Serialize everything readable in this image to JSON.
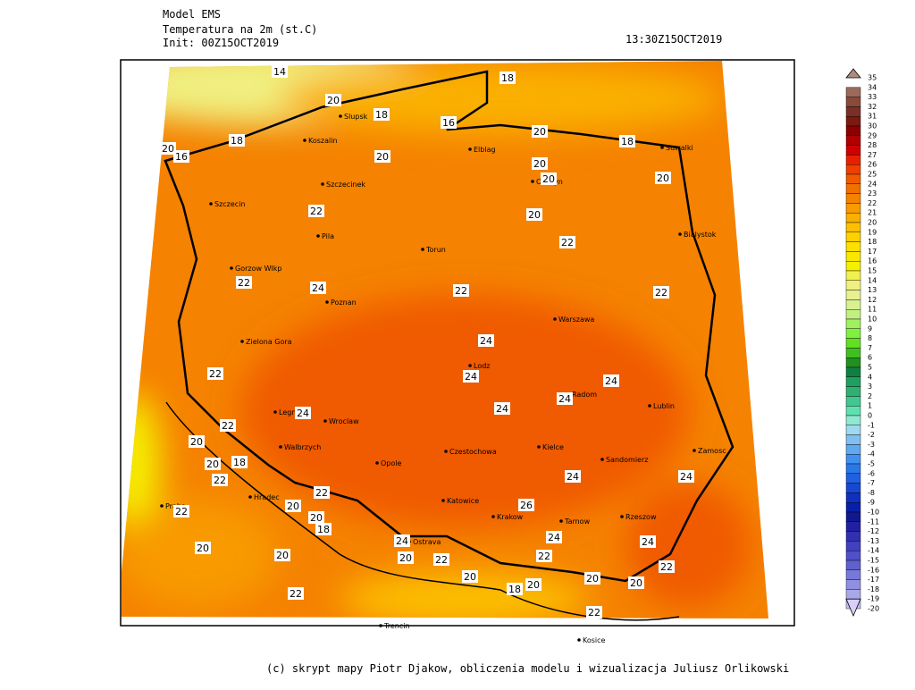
{
  "header": {
    "model": "Model EMS",
    "variable": "Temperatura na 2m (st.C)",
    "init": "Init: 00Z15OCT2019",
    "valid": "13:30Z15OCT2019"
  },
  "cities": [
    "Slupsk",
    "Koszalin",
    "Elblag",
    "Olsztyn",
    "Suwalki",
    "Szczecinek",
    "Szczecin",
    "Pila",
    "Bialystok",
    "Torun",
    "Gorzow Wlkp",
    "Poznan",
    "Warszawa",
    "Zielona Gora",
    "Lodz",
    "Radom",
    "Legnica",
    "Wroclaw",
    "Lublin",
    "Walbrzych",
    "Kielce",
    "Czestochowa",
    "Zamosc",
    "Opole",
    "Sandomierz",
    "Katowice",
    "Krakow",
    "Tarnow",
    "Rzeszow",
    "Hradec",
    "Praha",
    "Ostrava",
    "Trencin",
    "Kosice"
  ],
  "contour_labels": [
    "14",
    "20",
    "18",
    "18",
    "16",
    "18",
    "20",
    "16",
    "20",
    "18",
    "20",
    "20",
    "20",
    "20",
    "22",
    "20",
    "22",
    "22",
    "24",
    "22",
    "22",
    "24",
    "22",
    "24",
    "24",
    "24",
    "24",
    "24",
    "22",
    "20",
    "20",
    "18",
    "22",
    "24",
    "24",
    "22",
    "20",
    "26",
    "22",
    "20",
    "18",
    "24",
    "24",
    "24",
    "20",
    "20",
    "20",
    "22",
    "22",
    "22",
    "20",
    "20",
    "20",
    "20",
    "18",
    "22",
    "22"
  ],
  "colorbar": {
    "levels": [
      35,
      34,
      33,
      32,
      31,
      30,
      29,
      28,
      27,
      26,
      25,
      24,
      23,
      22,
      21,
      20,
      19,
      18,
      17,
      16,
      15,
      14,
      13,
      12,
      11,
      10,
      9,
      8,
      7,
      6,
      5,
      4,
      3,
      2,
      1,
      0,
      -1,
      -2,
      -3,
      -4,
      -5,
      -6,
      -7,
      -8,
      -9,
      -10,
      -11,
      -12,
      -13,
      -14,
      -15,
      -16,
      -17,
      -18,
      -19,
      -20
    ],
    "colors": [
      "#b08a80",
      "#9c6a5a",
      "#8a4a3a",
      "#7a3028",
      "#7a1a10",
      "#8b0000",
      "#b00000",
      "#d00000",
      "#e82000",
      "#f04000",
      "#f05a00",
      "#f07000",
      "#f58200",
      "#f89a00",
      "#fab000",
      "#fcc000",
      "#fdd000",
      "#fde000",
      "#f8e800",
      "#f5f000",
      "#f0f050",
      "#f0f080",
      "#e8f090",
      "#d8f090",
      "#c0f080",
      "#a0f060",
      "#80f040",
      "#60e020",
      "#40c020",
      "#209020",
      "#108040",
      "#20a060",
      "#30b070",
      "#40c890",
      "#60e0b0",
      "#90e8d0",
      "#a0d8f0",
      "#80c0f0",
      "#60a8f0",
      "#4090f0",
      "#2878e8",
      "#2060e0",
      "#1848d0",
      "#1030c0",
      "#0820a8",
      "#101890",
      "#2020a0",
      "#3030b0",
      "#4040c0",
      "#5050c8",
      "#6060d0",
      "#7878d8",
      "#9090e0",
      "#a8a8e8",
      "#c0c0f0",
      "#d8d0f8"
    ]
  },
  "footer": "(c) skrypt mapy Piotr Djakow, obliczenia modelu i wizualizacja Juliusz Orlikowski"
}
